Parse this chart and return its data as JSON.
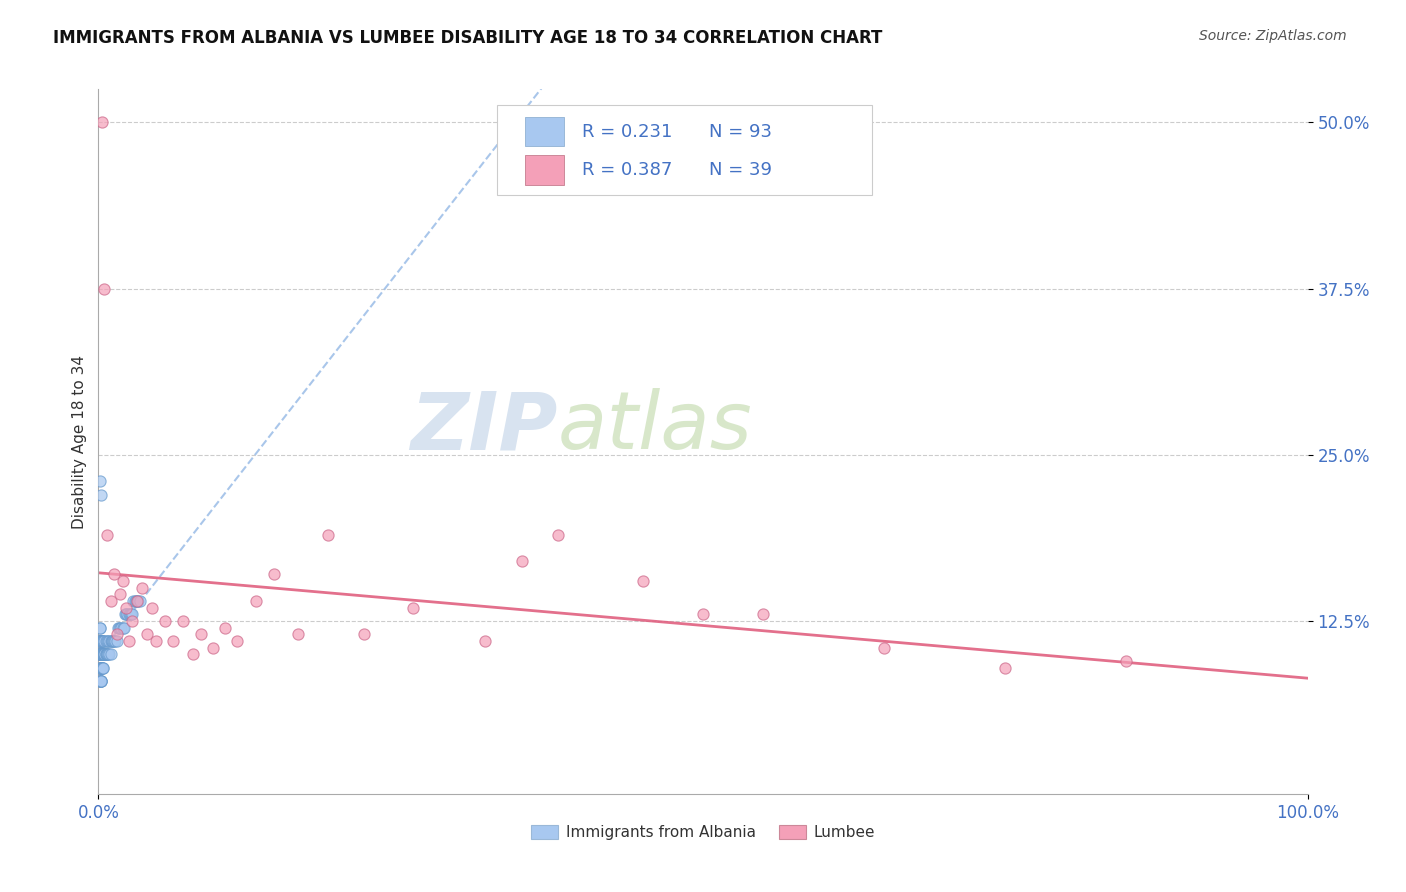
{
  "title": "IMMIGRANTS FROM ALBANIA VS LUMBEE DISABILITY AGE 18 TO 34 CORRELATION CHART",
  "source": "Source: ZipAtlas.com",
  "ylabel": "Disability Age 18 to 34",
  "xlim": [
    0.0,
    1.0
  ],
  "ylim": [
    -0.005,
    0.525
  ],
  "ytick_vals": [
    0.125,
    0.25,
    0.375,
    0.5
  ],
  "ytick_labels": [
    "12.5%",
    "25.0%",
    "37.5%",
    "50.0%"
  ],
  "xtick_vals": [
    0.0,
    1.0
  ],
  "xtick_labels": [
    "0.0%",
    "100.0%"
  ],
  "R_albania": 0.231,
  "N_albania": 93,
  "R_lumbee": 0.387,
  "N_lumbee": 39,
  "albania_color": "#a8c8f0",
  "albania_edge": "#6699cc",
  "lumbee_color": "#f4a0b8",
  "lumbee_edge": "#cc6688",
  "albania_trend_color": "#a0c0e8",
  "lumbee_trend_color": "#e06080",
  "label_color": "#4472c4",
  "tick_color": "#4472c4",
  "background": "#ffffff",
  "watermark_zip": "ZIP",
  "watermark_atlas": "atlas",
  "watermark_color_zip": "#c8d8ec",
  "watermark_color_atlas": "#c8d8a8",
  "legend_label1": "Immigrants from Albania",
  "legend_label2": "Lumbee",
  "title_fontsize": 12,
  "tick_fontsize": 12,
  "legend_fontsize": 13,
  "source_fontsize": 10,
  "albania_x": [
    0.001,
    0.001,
    0.001,
    0.001,
    0.001,
    0.001,
    0.001,
    0.001,
    0.001,
    0.001,
    0.001,
    0.001,
    0.001,
    0.001,
    0.001,
    0.001,
    0.001,
    0.001,
    0.001,
    0.001,
    0.002,
    0.002,
    0.002,
    0.002,
    0.002,
    0.002,
    0.002,
    0.002,
    0.002,
    0.002,
    0.002,
    0.002,
    0.002,
    0.002,
    0.002,
    0.003,
    0.003,
    0.003,
    0.003,
    0.003,
    0.003,
    0.003,
    0.003,
    0.003,
    0.004,
    0.004,
    0.004,
    0.004,
    0.004,
    0.004,
    0.005,
    0.005,
    0.005,
    0.005,
    0.006,
    0.006,
    0.006,
    0.007,
    0.007,
    0.007,
    0.008,
    0.008,
    0.009,
    0.009,
    0.01,
    0.01,
    0.011,
    0.011,
    0.012,
    0.013,
    0.014,
    0.015,
    0.016,
    0.017,
    0.018,
    0.019,
    0.02,
    0.021,
    0.022,
    0.023,
    0.024,
    0.025,
    0.026,
    0.027,
    0.028,
    0.029,
    0.03,
    0.031,
    0.032,
    0.033,
    0.034,
    0.001,
    0.002
  ],
  "albania_y": [
    0.08,
    0.08,
    0.08,
    0.09,
    0.09,
    0.09,
    0.1,
    0.1,
    0.1,
    0.1,
    0.1,
    0.1,
    0.1,
    0.11,
    0.11,
    0.11,
    0.11,
    0.11,
    0.12,
    0.12,
    0.08,
    0.08,
    0.08,
    0.08,
    0.09,
    0.09,
    0.09,
    0.09,
    0.1,
    0.1,
    0.1,
    0.1,
    0.1,
    0.11,
    0.11,
    0.09,
    0.09,
    0.09,
    0.1,
    0.1,
    0.1,
    0.1,
    0.11,
    0.11,
    0.09,
    0.09,
    0.1,
    0.1,
    0.11,
    0.11,
    0.1,
    0.1,
    0.1,
    0.11,
    0.1,
    0.1,
    0.11,
    0.1,
    0.1,
    0.11,
    0.1,
    0.11,
    0.1,
    0.11,
    0.1,
    0.11,
    0.11,
    0.11,
    0.11,
    0.11,
    0.11,
    0.11,
    0.12,
    0.12,
    0.12,
    0.12,
    0.12,
    0.12,
    0.13,
    0.13,
    0.13,
    0.13,
    0.13,
    0.13,
    0.13,
    0.14,
    0.14,
    0.14,
    0.14,
    0.14,
    0.14,
    0.23,
    0.22
  ],
  "lumbee_x": [
    0.003,
    0.005,
    0.007,
    0.01,
    0.013,
    0.015,
    0.018,
    0.02,
    0.023,
    0.025,
    0.028,
    0.032,
    0.036,
    0.04,
    0.044,
    0.048,
    0.055,
    0.062,
    0.07,
    0.078,
    0.085,
    0.095,
    0.105,
    0.115,
    0.13,
    0.145,
    0.165,
    0.19,
    0.22,
    0.26,
    0.32,
    0.38,
    0.45,
    0.55,
    0.65,
    0.75,
    0.85,
    0.35,
    0.5
  ],
  "lumbee_y": [
    0.5,
    0.375,
    0.19,
    0.14,
    0.16,
    0.115,
    0.145,
    0.155,
    0.135,
    0.11,
    0.125,
    0.14,
    0.15,
    0.115,
    0.135,
    0.11,
    0.125,
    0.11,
    0.125,
    0.1,
    0.115,
    0.105,
    0.12,
    0.11,
    0.14,
    0.16,
    0.115,
    0.19,
    0.115,
    0.135,
    0.11,
    0.19,
    0.155,
    0.13,
    0.105,
    0.09,
    0.095,
    0.17,
    0.13
  ]
}
